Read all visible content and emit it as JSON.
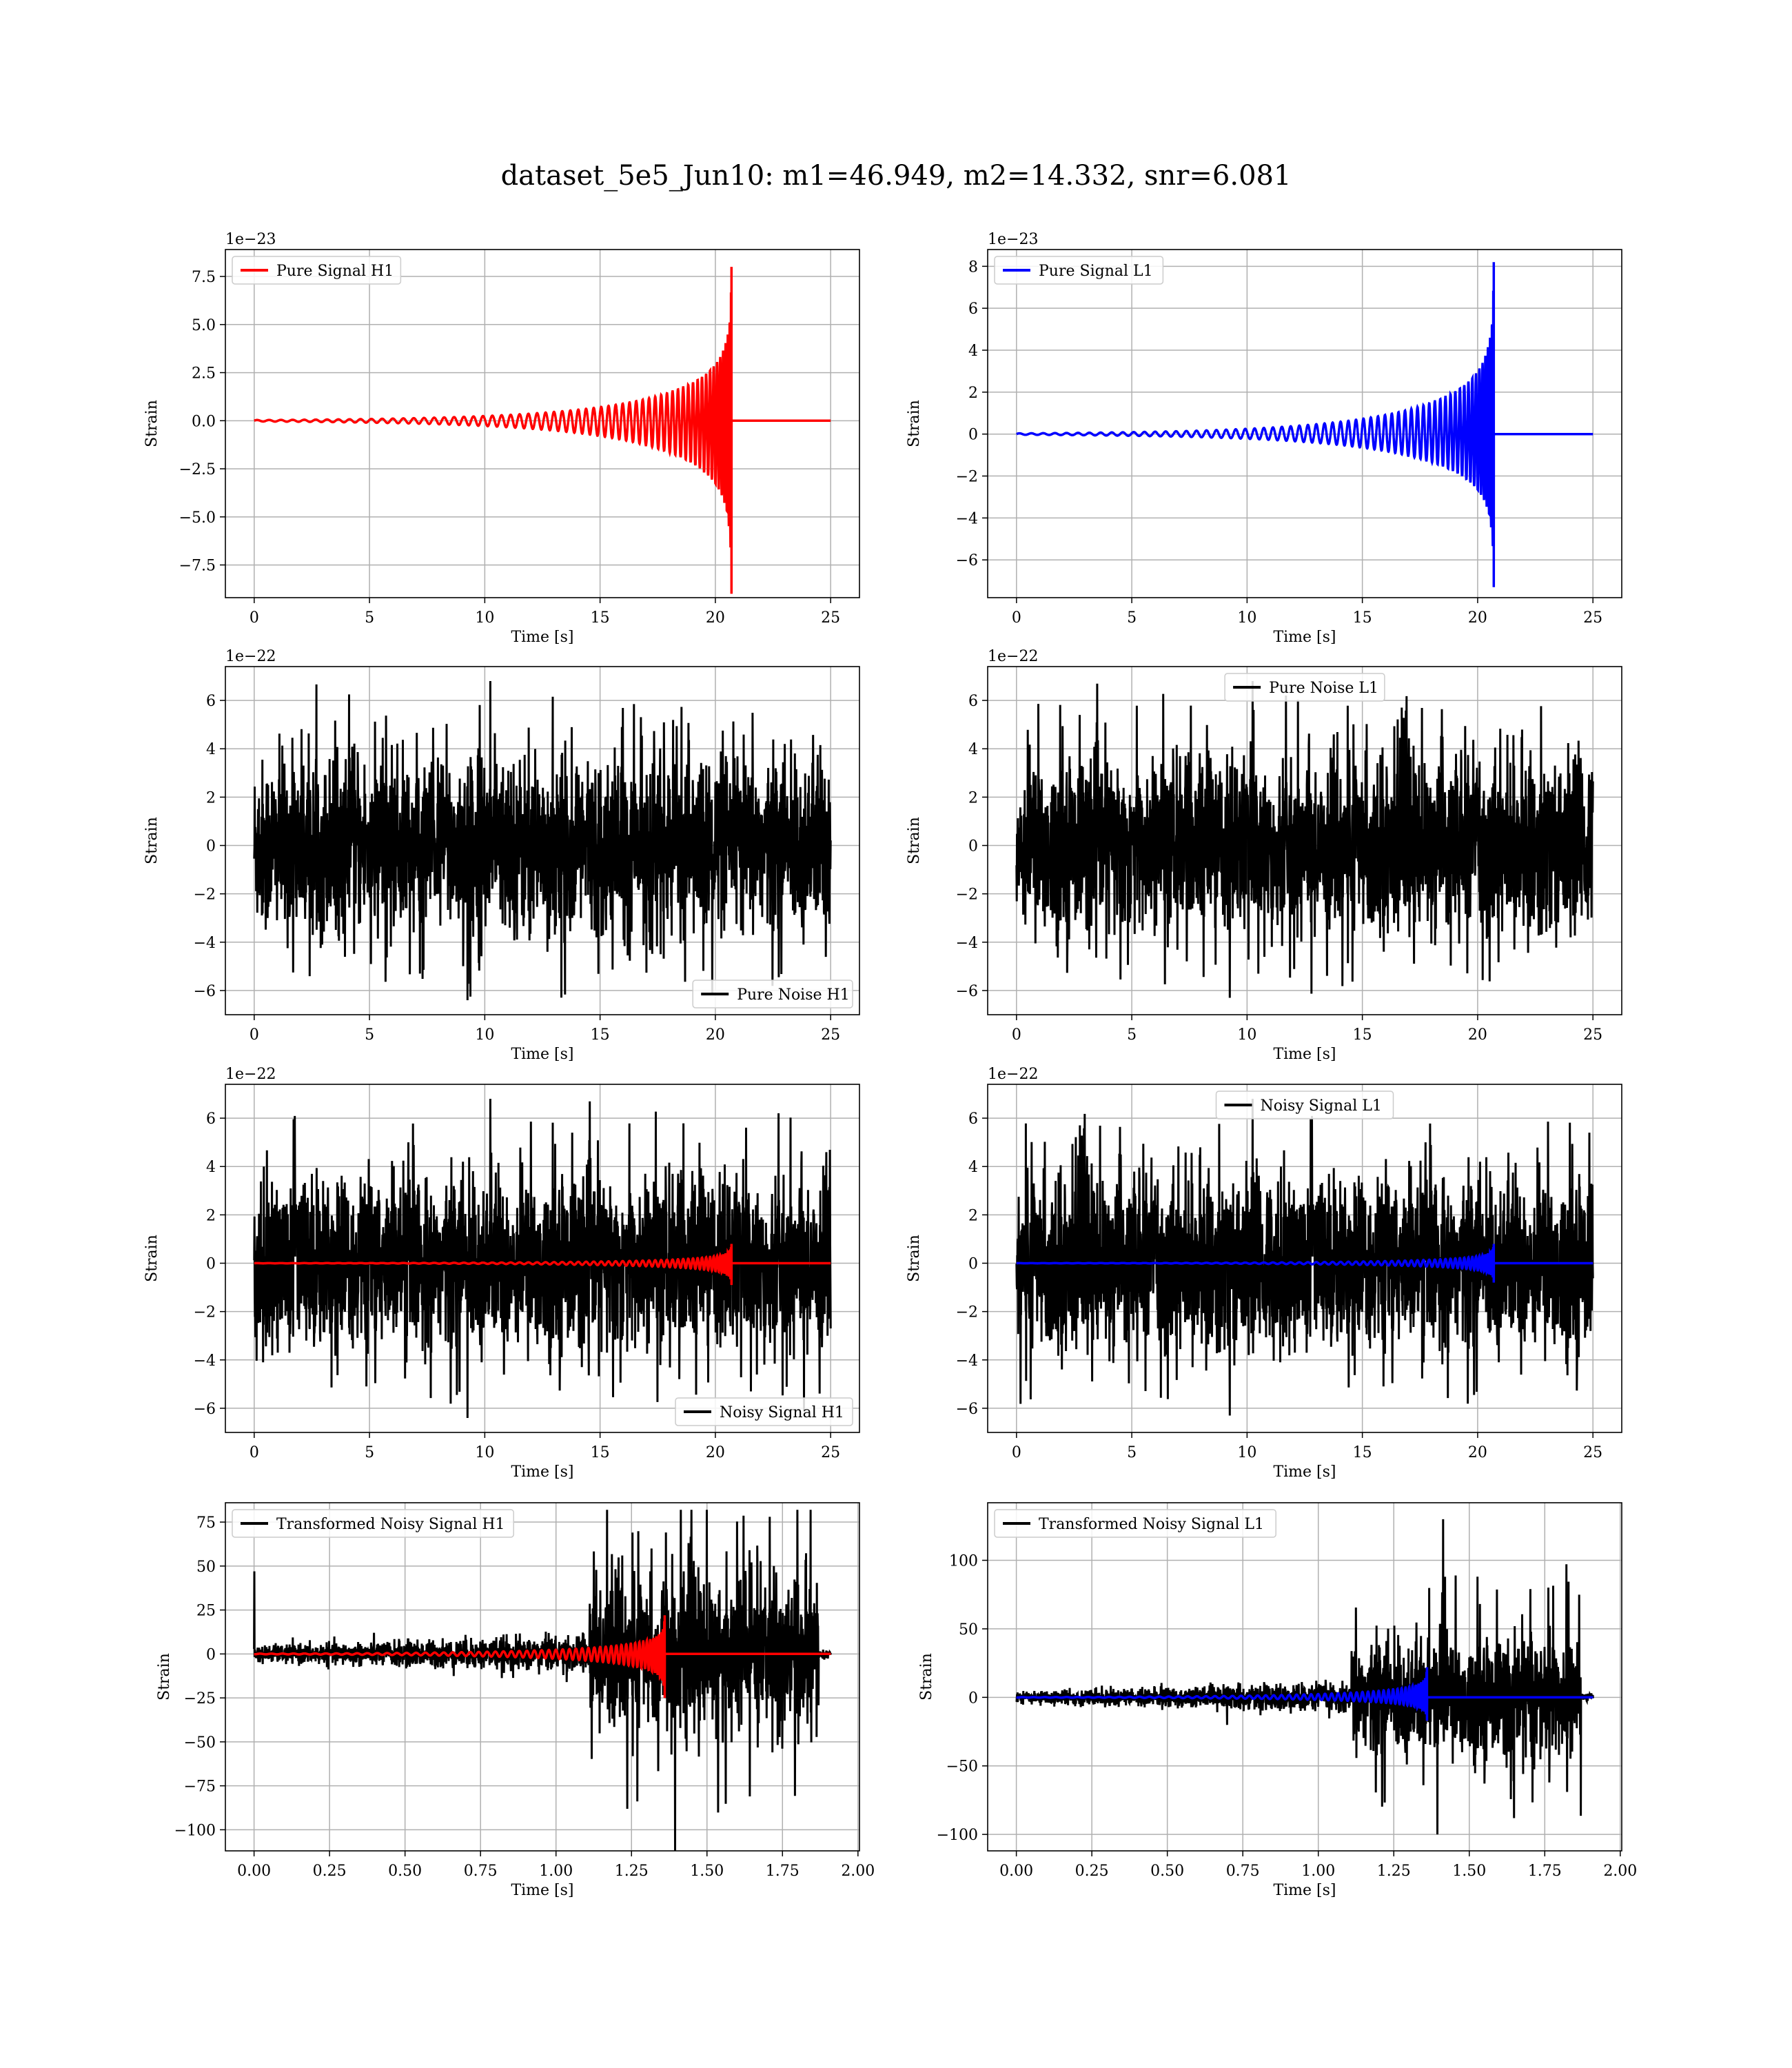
{
  "figure": {
    "title": "dataset_5e5_Jun10: m1=46.949, m2=14.332, snr=6.081"
  },
  "colors": {
    "h1_signal": "#ff0000",
    "l1_signal": "#0000ff",
    "noise": "#000000",
    "grid": "#b0b0b0"
  },
  "chart_data": [
    {
      "type": "line",
      "id": "h1-pure-signal",
      "xlabel": "Time [s]",
      "ylabel": "Strain",
      "xlim": [
        -1.25,
        26.25
      ],
      "ylim": [
        -9.2,
        8.9
      ],
      "xticks": [
        0,
        5,
        10,
        15,
        20,
        25
      ],
      "xticklabels": [
        "0",
        "5",
        "10",
        "15",
        "20",
        "25"
      ],
      "yticks": [
        -7.5,
        -5.0,
        -2.5,
        0.0,
        2.5,
        5.0,
        7.5
      ],
      "yticklabels": [
        "−7.5",
        "−5.0",
        "−2.5",
        "0.0",
        "2.5",
        "5.0",
        "7.5"
      ],
      "offset_text": "1e−23",
      "legend": {
        "loc": "upper-left",
        "entries": [
          {
            "label": "Pure Signal H1",
            "color": "#ff0000"
          }
        ]
      },
      "grid": true,
      "series": [
        {
          "name": "Pure Signal H1",
          "kind": "chirp",
          "color": "#ff0000",
          "x_start": 0,
          "x_end": 25,
          "merger_time": 20.7,
          "peak_amplitude": 8.0,
          "min_amplitude": -9.0
        }
      ]
    },
    {
      "type": "line",
      "id": "l1-pure-signal",
      "xlabel": "Time [s]",
      "ylabel": "Strain",
      "xlim": [
        -1.25,
        26.25
      ],
      "ylim": [
        -7.8,
        8.8
      ],
      "xticks": [
        0,
        5,
        10,
        15,
        20,
        25
      ],
      "xticklabels": [
        "0",
        "5",
        "10",
        "15",
        "20",
        "25"
      ],
      "yticks": [
        -6,
        -4,
        -2,
        0,
        2,
        4,
        6,
        8
      ],
      "yticklabels": [
        "−6",
        "−4",
        "−2",
        "0",
        "2",
        "4",
        "6",
        "8"
      ],
      "offset_text": "1e−23",
      "legend": {
        "loc": "upper-left",
        "entries": [
          {
            "label": "Pure Signal L1",
            "color": "#0000ff"
          }
        ]
      },
      "grid": true,
      "series": [
        {
          "name": "Pure Signal L1",
          "kind": "chirp",
          "color": "#0000ff",
          "x_start": 0,
          "x_end": 25,
          "merger_time": 20.7,
          "peak_amplitude": 8.2,
          "min_amplitude": -7.3
        }
      ]
    },
    {
      "type": "line",
      "id": "h1-pure-noise",
      "xlabel": "Time [s]",
      "ylabel": "Strain",
      "xlim": [
        -1.25,
        26.25
      ],
      "ylim": [
        -7.0,
        7.4
      ],
      "xticks": [
        0,
        5,
        10,
        15,
        20,
        25
      ],
      "xticklabels": [
        "0",
        "5",
        "10",
        "15",
        "20",
        "25"
      ],
      "yticks": [
        -6,
        -4,
        -2,
        0,
        2,
        4,
        6
      ],
      "yticklabels": [
        "−6",
        "−4",
        "−2",
        "0",
        "2",
        "4",
        "6"
      ],
      "offset_text": "1e−22",
      "legend": {
        "loc": "lower-right",
        "entries": [
          {
            "label": "Pure Noise H1",
            "color": "#000000"
          }
        ]
      },
      "grid": true,
      "series": [
        {
          "name": "Pure Noise H1",
          "kind": "noise",
          "color": "#000000",
          "x_start": 0,
          "x_end": 25,
          "max": 6.8,
          "min": -6.4,
          "typical_band": [
            -3.8,
            3.8
          ]
        }
      ]
    },
    {
      "type": "line",
      "id": "l1-pure-noise",
      "xlabel": "Time [s]",
      "ylabel": "Strain",
      "xlim": [
        -1.25,
        26.25
      ],
      "ylim": [
        -7.0,
        7.4
      ],
      "xticks": [
        0,
        5,
        10,
        15,
        20,
        25
      ],
      "xticklabels": [
        "0",
        "5",
        "10",
        "15",
        "20",
        "25"
      ],
      "yticks": [
        -6,
        -4,
        -2,
        0,
        2,
        4,
        6
      ],
      "yticklabels": [
        "−6",
        "−4",
        "−2",
        "0",
        "2",
        "4",
        "6"
      ],
      "offset_text": "1e−22",
      "legend": {
        "loc": "upper-center",
        "entries": [
          {
            "label": "Pure Noise L1",
            "color": "#000000"
          }
        ]
      },
      "grid": true,
      "series": [
        {
          "name": "Pure Noise L1",
          "kind": "noise",
          "color": "#000000",
          "x_start": 0,
          "x_end": 25,
          "max": 6.8,
          "min": -6.3,
          "typical_band": [
            -3.8,
            3.8
          ]
        }
      ]
    },
    {
      "type": "line",
      "id": "h1-noisy-signal",
      "xlabel": "Time [s]",
      "ylabel": "Strain",
      "xlim": [
        -1.25,
        26.25
      ],
      "ylim": [
        -7.0,
        7.4
      ],
      "xticks": [
        0,
        5,
        10,
        15,
        20,
        25
      ],
      "xticklabels": [
        "0",
        "5",
        "10",
        "15",
        "20",
        "25"
      ],
      "yticks": [
        -6,
        -4,
        -2,
        0,
        2,
        4,
        6
      ],
      "yticklabels": [
        "−6",
        "−4",
        "−2",
        "0",
        "2",
        "4",
        "6"
      ],
      "offset_text": "1e−22",
      "legend": {
        "loc": "lower-right",
        "entries": [
          {
            "label": "Noisy Signal H1",
            "color": "#000000"
          }
        ]
      },
      "grid": true,
      "series": [
        {
          "name": "Noisy Signal H1",
          "kind": "noise",
          "color": "#000000",
          "x_start": 0,
          "x_end": 25,
          "max": 6.8,
          "min": -6.4,
          "typical_band": [
            -3.8,
            3.8
          ]
        },
        {
          "kind": "chirp",
          "color": "#ff0000",
          "x_start": 0,
          "x_end": 25,
          "merger_time": 20.7,
          "peak_amplitude": 0.8,
          "min_amplitude": -0.9
        }
      ]
    },
    {
      "type": "line",
      "id": "l1-noisy-signal",
      "xlabel": "Time [s]",
      "ylabel": "Strain",
      "xlim": [
        -1.25,
        26.25
      ],
      "ylim": [
        -7.0,
        7.4
      ],
      "xticks": [
        0,
        5,
        10,
        15,
        20,
        25
      ],
      "xticklabels": [
        "0",
        "5",
        "10",
        "15",
        "20",
        "25"
      ],
      "yticks": [
        -6,
        -4,
        -2,
        0,
        2,
        4,
        6
      ],
      "yticklabels": [
        "−6",
        "−4",
        "−2",
        "0",
        "2",
        "4",
        "6"
      ],
      "offset_text": "1e−22",
      "legend": {
        "loc": "upper-center",
        "entries": [
          {
            "label": "Noisy Signal L1",
            "color": "#000000"
          }
        ]
      },
      "grid": true,
      "series": [
        {
          "name": "Noisy Signal L1",
          "kind": "noise",
          "color": "#000000",
          "x_start": 0,
          "x_end": 25,
          "max": 6.8,
          "min": -6.3,
          "typical_band": [
            -3.8,
            3.8
          ]
        },
        {
          "kind": "chirp",
          "color": "#0000ff",
          "x_start": 0,
          "x_end": 25,
          "merger_time": 20.7,
          "peak_amplitude": 0.8,
          "min_amplitude": -0.8
        }
      ]
    },
    {
      "type": "line",
      "id": "h1-transformed",
      "xlabel": "Time [s]",
      "ylabel": "Strain",
      "xlim": [
        -0.095,
        2.005
      ],
      "ylim": [
        -112,
        86
      ],
      "xticks": [
        0.0,
        0.25,
        0.5,
        0.75,
        1.0,
        1.25,
        1.5,
        1.75,
        2.0
      ],
      "xticklabels": [
        "0.00",
        "0.25",
        "0.50",
        "0.75",
        "1.00",
        "1.25",
        "1.50",
        "1.75",
        "2.00"
      ],
      "yticks": [
        -100,
        -75,
        -50,
        -25,
        0,
        25,
        50,
        75
      ],
      "yticklabels": [
        "−100",
        "−75",
        "−50",
        "−25",
        "0",
        "25",
        "50",
        "75"
      ],
      "legend": {
        "loc": "upper-left",
        "entries": [
          {
            "label": "Transformed Noisy Signal H1",
            "color": "#000000"
          }
        ]
      },
      "grid": true,
      "series": [
        {
          "name": "Transformed Noisy Signal H1",
          "kind": "whitened-noise",
          "color": "#000000",
          "x_start": 0,
          "x_end": 1.91,
          "step_time": 1.11,
          "spike_at_zero": 47,
          "band_before": 10,
          "band_after": 55,
          "max": 82,
          "min": -112
        },
        {
          "kind": "chirp",
          "color": "#ff0000",
          "x_start": 0,
          "x_end": 1.91,
          "merger_time": 1.36,
          "peak_amplitude": 22,
          "min_amplitude": -25
        }
      ]
    },
    {
      "type": "line",
      "id": "l1-transformed",
      "xlabel": "Time [s]",
      "ylabel": "Strain",
      "xlim": [
        -0.095,
        2.005
      ],
      "ylim": [
        -112,
        142
      ],
      "xticks": [
        0.0,
        0.25,
        0.5,
        0.75,
        1.0,
        1.25,
        1.5,
        1.75,
        2.0
      ],
      "xticklabels": [
        "0.00",
        "0.25",
        "0.50",
        "0.75",
        "1.00",
        "1.25",
        "1.50",
        "1.75",
        "2.00"
      ],
      "yticks": [
        -100,
        -50,
        0,
        50,
        100
      ],
      "yticklabels": [
        "−100",
        "−50",
        "0",
        "50",
        "100"
      ],
      "legend": {
        "loc": "upper-left",
        "entries": [
          {
            "label": "Transformed Noisy Signal L1",
            "color": "#000000"
          }
        ]
      },
      "grid": true,
      "series": [
        {
          "name": "Transformed Noisy Signal L1",
          "kind": "whitened-noise",
          "color": "#000000",
          "x_start": 0,
          "x_end": 1.91,
          "step_time": 1.11,
          "spike_at_zero": 0,
          "band_before": 10,
          "band_after": 55,
          "max": 130,
          "min": -100
        },
        {
          "kind": "chirp",
          "color": "#0000ff",
          "x_start": 0,
          "x_end": 1.91,
          "merger_time": 1.36,
          "peak_amplitude": 22,
          "min_amplitude": -17
        }
      ]
    }
  ]
}
